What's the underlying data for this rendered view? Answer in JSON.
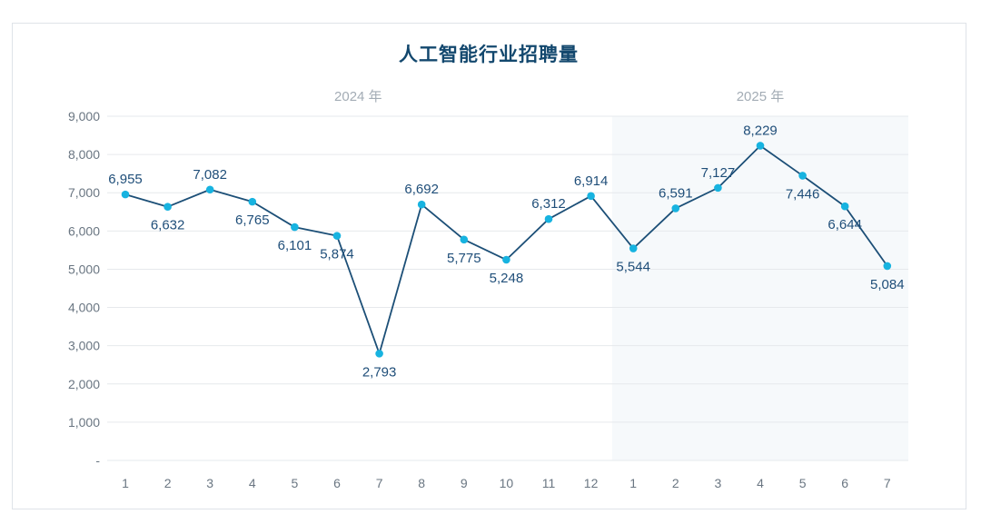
{
  "chart_data": {
    "type": "line",
    "title": "人工智能行业招聘量",
    "groups": [
      {
        "label": "2024 年",
        "categories": [
          "1",
          "2",
          "3",
          "4",
          "5",
          "6",
          "7",
          "8",
          "9",
          "10",
          "11",
          "12"
        ]
      },
      {
        "label": "2025 年",
        "categories": [
          "1",
          "2",
          "3",
          "4",
          "5",
          "6",
          "7"
        ]
      }
    ],
    "categories": [
      "1",
      "2",
      "3",
      "4",
      "5",
      "6",
      "7",
      "8",
      "9",
      "10",
      "11",
      "12",
      "1",
      "2",
      "3",
      "4",
      "5",
      "6",
      "7"
    ],
    "series": [
      {
        "values": [
          6955,
          6632,
          7082,
          6765,
          6101,
          5874,
          2793,
          6692,
          5775,
          5248,
          6312,
          6914,
          5544,
          6591,
          7127,
          8229,
          7446,
          6644,
          5084
        ],
        "value_labels": [
          "6,955",
          "6,632",
          "7,082",
          "6,765",
          "6,101",
          "5,874",
          "2,793",
          "6,692",
          "5,775",
          "5,248",
          "6,312",
          "6,914",
          "5,544",
          "6,591",
          "7,127",
          "8,229",
          "7,446",
          "6,644",
          "5,084"
        ]
      }
    ],
    "y_tick_labels": [
      "-",
      "1,000",
      "2,000",
      "3,000",
      "4,000",
      "5,000",
      "6,000",
      "7,000",
      "8,000",
      "9,000"
    ],
    "ylim": [
      0,
      9000
    ],
    "grid": true,
    "legend": "none",
    "colors": {
      "line": "#1c4f77",
      "marker": "#17b3e0",
      "label": "#1f4e79",
      "grid": "#e6e9ec",
      "plot_bg_2025": "#f6f9fb"
    }
  }
}
